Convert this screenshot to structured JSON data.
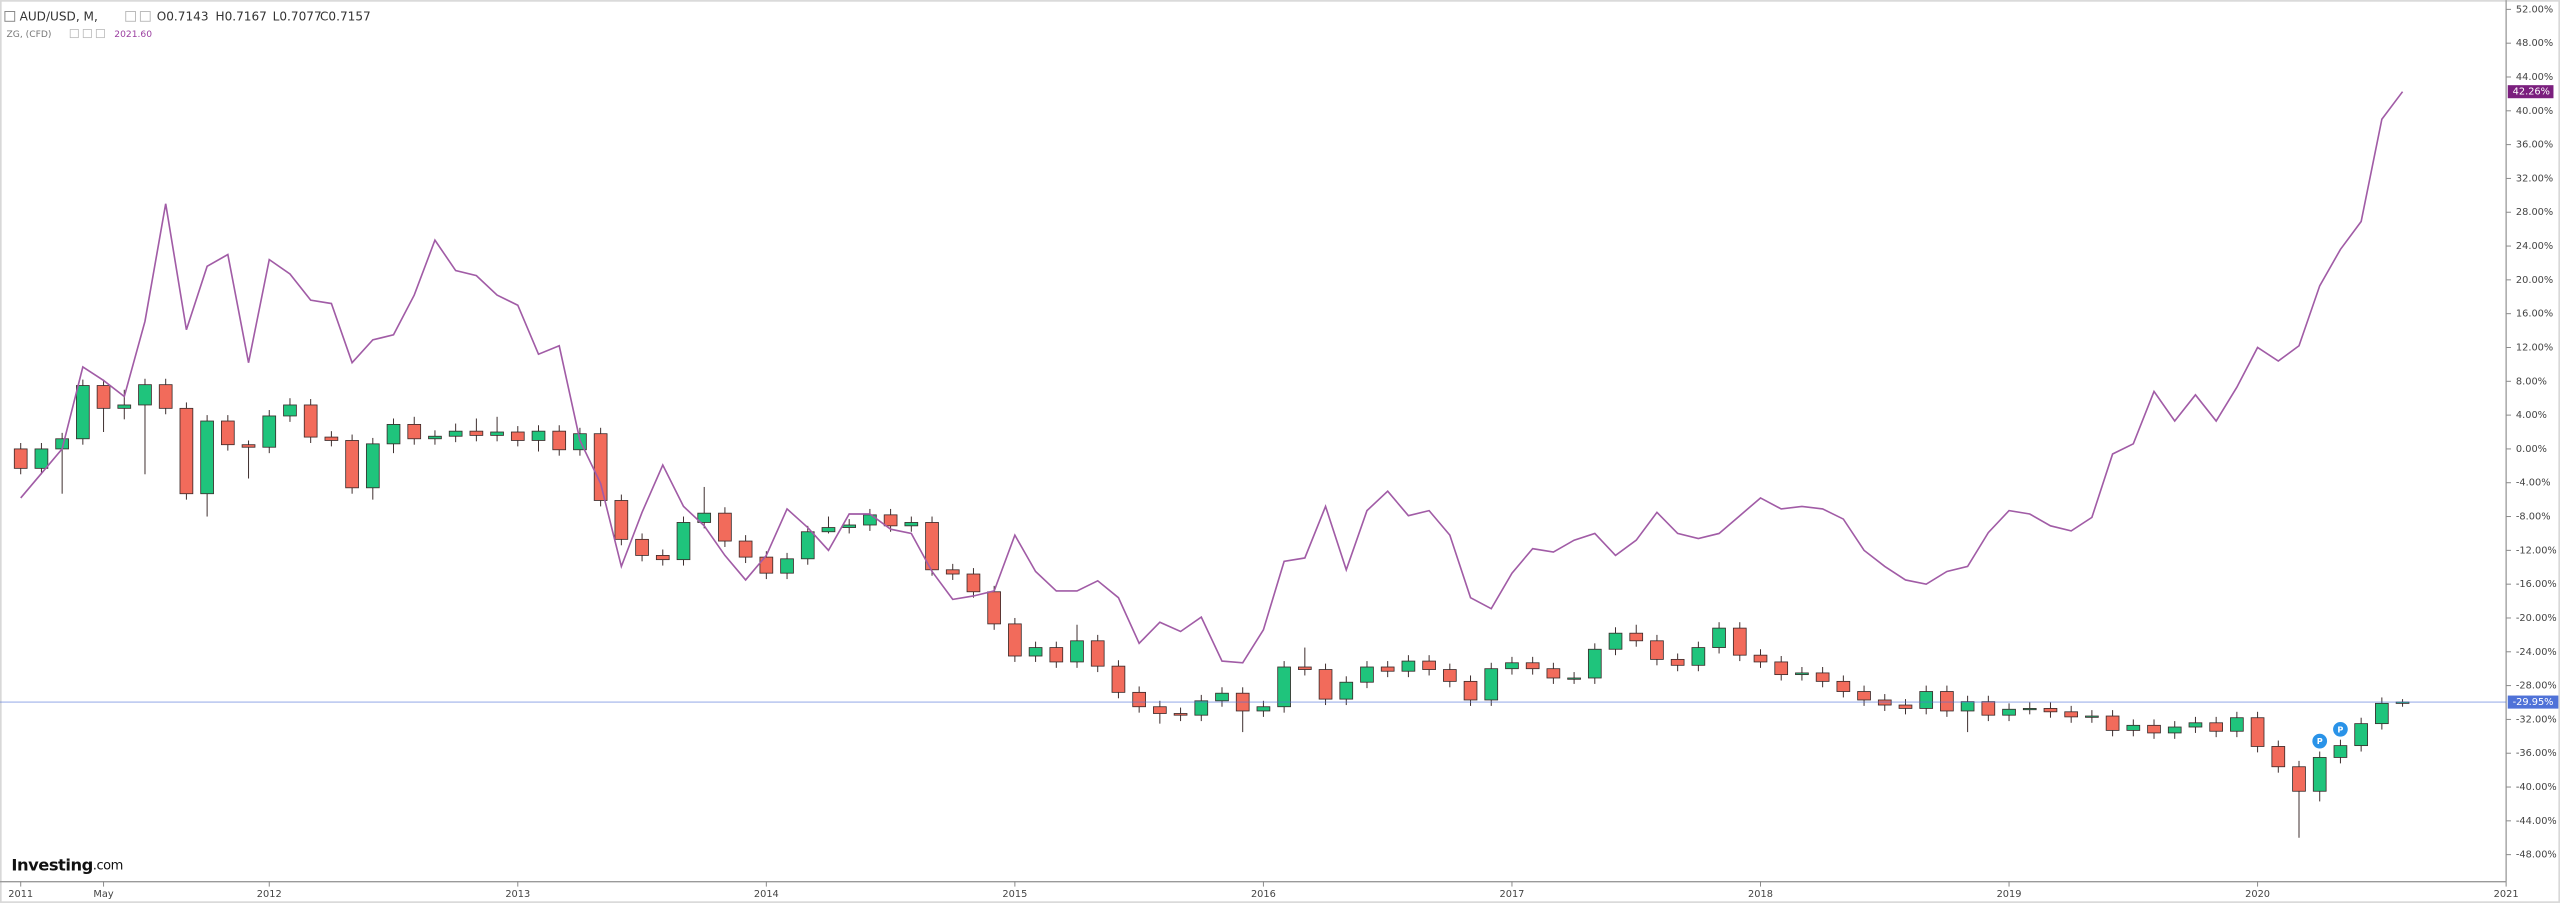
{
  "chart_data": {
    "type": "candlestick",
    "title": "AUD/USD, M,",
    "ohlc_labels": [
      "O0.7143",
      "H0.7167",
      "L0.7077",
      "C0.7157"
    ],
    "indicator": {
      "name": "ZG, (CFD)",
      "value": "2021.60"
    },
    "watermark": [
      "Investing",
      ".com"
    ],
    "x": [
      "2011-01",
      "2011-02",
      "2011-03",
      "2011-04",
      "2011-05",
      "2011-06",
      "2011-07",
      "2011-08",
      "2011-09",
      "2011-10",
      "2011-11",
      "2011-12",
      "2012-01",
      "2012-02",
      "2012-03",
      "2012-04",
      "2012-05",
      "2012-06",
      "2012-07",
      "2012-08",
      "2012-09",
      "2012-10",
      "2012-11",
      "2012-12",
      "2013-01",
      "2013-02",
      "2013-03",
      "2013-04",
      "2013-05",
      "2013-06",
      "2013-07",
      "2013-08",
      "2013-09",
      "2013-10",
      "2013-11",
      "2013-12",
      "2014-01",
      "2014-02",
      "2014-03",
      "2014-04",
      "2014-05",
      "2014-06",
      "2014-07",
      "2014-08",
      "2014-09",
      "2014-10",
      "2014-11",
      "2014-12",
      "2015-01",
      "2015-02",
      "2015-03",
      "2015-04",
      "2015-05",
      "2015-06",
      "2015-07",
      "2015-08",
      "2015-09",
      "2015-10",
      "2015-11",
      "2015-12",
      "2016-01",
      "2016-02",
      "2016-03",
      "2016-04",
      "2016-05",
      "2016-06",
      "2016-07",
      "2016-08",
      "2016-09",
      "2016-10",
      "2016-11",
      "2016-12",
      "2017-01",
      "2017-02",
      "2017-03",
      "2017-04",
      "2017-05",
      "2017-06",
      "2017-07",
      "2017-08",
      "2017-09",
      "2017-10",
      "2017-11",
      "2017-12",
      "2018-01",
      "2018-02",
      "2018-03",
      "2018-04",
      "2018-05",
      "2018-06",
      "2018-07",
      "2018-08",
      "2018-09",
      "2018-10",
      "2018-11",
      "2018-12",
      "2019-01",
      "2019-02",
      "2019-03",
      "2019-04",
      "2019-05",
      "2019-06",
      "2019-07",
      "2019-08",
      "2019-09",
      "2019-10",
      "2019-11",
      "2019-12",
      "2020-01",
      "2020-02",
      "2020-03",
      "2020-04",
      "2020-05",
      "2020-06",
      "2020-07",
      "2020-08"
    ],
    "series": [
      {
        "up_color": "#1fc47c",
        "down_color": "#f26b5b",
        "border_color": "#3a2a2a",
        "last_label": "-29.95%",
        "label_color": "#4f72d8",
        "open": [
          0,
          -2.3,
          0,
          1.2,
          7.5,
          4.8,
          5.2,
          7.6,
          4.8,
          -5.3,
          3.3,
          0.5,
          0.2,
          3.9,
          5.2,
          1.4,
          1.0,
          -4.6,
          0.6,
          2.9,
          1.2,
          1.5,
          2.1,
          1.6,
          2.0,
          1.0,
          2.1,
          -0.1,
          1.8,
          -6.1,
          -10.7,
          -12.6,
          -13.1,
          -8.7,
          -7.6,
          -10.9,
          -12.8,
          -14.7,
          -13.0,
          -9.8,
          -9.3,
          -9.0,
          -7.8,
          -9.1,
          -8.7,
          -14.3,
          -14.8,
          -16.9,
          -20.7,
          -24.5,
          -23.5,
          -25.2,
          -22.7,
          -25.7,
          -28.8,
          -30.5,
          -31.3,
          -31.5,
          -29.8,
          -28.9,
          -31.0,
          -30.5,
          -25.8,
          -26.1,
          -29.6,
          -27.6,
          -25.8,
          -26.3,
          -25.1,
          -26.1,
          -27.5,
          -29.7,
          -26.0,
          -25.3,
          -26.0,
          -27.1,
          -27.1,
          -23.7,
          -21.8,
          -22.7,
          -24.9,
          -25.6,
          -23.5,
          -21.2,
          -24.4,
          -25.2,
          -26.7,
          -26.5,
          -27.5,
          -28.7,
          -29.7,
          -30.3,
          -30.7,
          -28.7,
          -31.0,
          -29.9,
          -31.5,
          -30.8,
          -30.7,
          -31.1,
          -31.7,
          -31.6,
          -33.3,
          -32.7,
          -33.6,
          -32.9,
          -32.4,
          -33.4,
          -31.8,
          -35.2,
          -37.6,
          -40.5,
          -36.5,
          -35.1,
          -32.5,
          -30.1
        ],
        "high": [
          0.7,
          0.7,
          1.9,
          8.2,
          8.2,
          7.0,
          8.3,
          8.3,
          5.5,
          4.0,
          4.0,
          1.0,
          4.6,
          6.0,
          5.9,
          2.1,
          1.7,
          1.3,
          3.6,
          3.8,
          2.2,
          3.0,
          3.6,
          3.8,
          2.7,
          2.8,
          2.8,
          2.5,
          2.5,
          -5.4,
          -10.0,
          -11.9,
          -8.0,
          -4.5,
          -6.9,
          -10.2,
          -12.1,
          -12.3,
          -9.1,
          -8.0,
          -8.3,
          -7.1,
          -7.1,
          -8.0,
          -8.0,
          -13.6,
          -14.1,
          -16.2,
          -20.0,
          -22.8,
          -22.8,
          -20.8,
          -22.0,
          -25.0,
          -28.1,
          -29.8,
          -30.6,
          -29.1,
          -28.2,
          -28.2,
          -29.8,
          -25.1,
          -23.5,
          -25.4,
          -26.9,
          -25.1,
          -25.1,
          -24.4,
          -24.4,
          -25.4,
          -26.8,
          -25.3,
          -24.6,
          -24.6,
          -25.3,
          -26.4,
          -23.0,
          -21.1,
          -20.8,
          -22.0,
          -24.2,
          -22.8,
          -20.5,
          -20.5,
          -23.7,
          -24.5,
          -25.8,
          -25.8,
          -26.8,
          -28.0,
          -29.0,
          -29.6,
          -28.0,
          -28.0,
          -29.2,
          -29.2,
          -30.1,
          -30.0,
          -30.0,
          -30.4,
          -30.9,
          -30.9,
          -32.0,
          -32.0,
          -32.2,
          -31.7,
          -31.7,
          -31.1,
          -31.1,
          -34.5,
          -36.9,
          -35.8,
          -34.4,
          -31.8,
          -29.4,
          -29.6
        ],
        "low": [
          -3.0,
          -3.0,
          -5.3,
          0.5,
          2.0,
          3.5,
          -3.0,
          4.1,
          -6.0,
          -8.0,
          -0.2,
          -3.5,
          -0.5,
          3.2,
          0.7,
          0.3,
          -5.3,
          -6.0,
          -0.5,
          0.5,
          0.5,
          0.8,
          0.9,
          0.9,
          0.3,
          -0.3,
          -0.8,
          -0.8,
          -6.8,
          -11.4,
          -13.3,
          -13.8,
          -13.8,
          -9.4,
          -11.6,
          -13.5,
          -15.4,
          -15.4,
          -13.7,
          -10.0,
          -10.0,
          -9.7,
          -9.8,
          -9.8,
          -15.0,
          -15.5,
          -17.6,
          -21.4,
          -25.2,
          -25.2,
          -25.9,
          -25.9,
          -26.4,
          -29.5,
          -31.2,
          -32.5,
          -32.2,
          -32.2,
          -30.5,
          -33.5,
          -31.7,
          -31.2,
          -26.8,
          -30.3,
          -30.3,
          -28.3,
          -27.0,
          -27.0,
          -26.8,
          -28.2,
          -30.4,
          -30.4,
          -26.7,
          -26.7,
          -27.8,
          -27.8,
          -27.8,
          -24.4,
          -23.4,
          -25.6,
          -26.3,
          -26.3,
          -24.2,
          -25.1,
          -25.9,
          -27.4,
          -27.4,
          -28.2,
          -29.4,
          -30.4,
          -31.0,
          -31.4,
          -31.4,
          -31.7,
          -33.5,
          -32.2,
          -32.2,
          -31.4,
          -31.8,
          -32.4,
          -32.4,
          -34.0,
          -34.0,
          -34.3,
          -34.3,
          -33.6,
          -34.1,
          -34.1,
          -35.9,
          -38.3,
          -46.0,
          -41.7,
          -37.2,
          -35.8,
          -33.2,
          -30.5
        ],
        "close": [
          -2.3,
          0,
          1.2,
          7.5,
          4.8,
          5.2,
          7.6,
          4.8,
          -5.3,
          3.3,
          0.5,
          0.2,
          3.9,
          5.2,
          1.4,
          1.0,
          -4.6,
          0.6,
          2.9,
          1.2,
          1.5,
          2.1,
          1.6,
          2.0,
          1.0,
          2.1,
          -0.1,
          1.8,
          -6.1,
          -10.7,
          -12.6,
          -13.1,
          -8.7,
          -7.6,
          -10.9,
          -12.8,
          -14.7,
          -13.0,
          -9.8,
          -9.3,
          -9.0,
          -7.8,
          -9.1,
          -8.7,
          -14.3,
          -14.8,
          -16.9,
          -20.7,
          -24.5,
          -23.5,
          -25.2,
          -22.7,
          -25.7,
          -28.8,
          -30.5,
          -31.3,
          -31.5,
          -29.8,
          -28.9,
          -31.0,
          -30.5,
          -25.8,
          -26.1,
          -29.6,
          -27.6,
          -25.8,
          -26.3,
          -25.1,
          -26.1,
          -27.5,
          -29.7,
          -26.0,
          -25.3,
          -26.0,
          -27.1,
          -27.1,
          -23.7,
          -21.8,
          -22.7,
          -24.9,
          -25.6,
          -23.5,
          -21.2,
          -24.4,
          -25.2,
          -26.7,
          -26.5,
          -27.5,
          -28.7,
          -29.7,
          -30.3,
          -30.7,
          -28.7,
          -31.0,
          -29.9,
          -31.5,
          -30.8,
          -30.7,
          -31.1,
          -31.7,
          -31.6,
          -33.3,
          -32.7,
          -33.6,
          -32.9,
          -32.4,
          -33.4,
          -31.8,
          -35.2,
          -37.6,
          -40.5,
          -36.5,
          -35.1,
          -32.5,
          -30.1,
          -29.95
        ]
      },
      {
        "type": "line",
        "name": "ZG, (CFD)",
        "color": "#a15ca6",
        "last_label": "42.26%",
        "label_color": "#7b1f7e",
        "values": [
          -5.8,
          -2.9,
          0.0,
          9.7,
          8.1,
          6.2,
          15.1,
          29.0,
          14.1,
          21.6,
          23.0,
          10.2,
          22.4,
          20.7,
          17.6,
          17.2,
          10.2,
          12.9,
          13.5,
          18.2,
          24.7,
          21.1,
          20.5,
          18.2,
          17.0,
          11.2,
          12.2,
          1.0,
          -4.1,
          -13.9,
          -7.5,
          -1.9,
          -6.8,
          -9.1,
          -12.6,
          -15.5,
          -12.6,
          -7.1,
          -9.3,
          -12.0,
          -7.7,
          -7.7,
          -9.5,
          -10.0,
          -14.5,
          -17.8,
          -17.4,
          -16.8,
          -10.2,
          -14.5,
          -16.8,
          -16.8,
          -15.6,
          -17.6,
          -23.0,
          -20.5,
          -21.6,
          -19.9,
          -25.1,
          -25.3,
          -21.4,
          -13.3,
          -12.9,
          -6.8,
          -14.3,
          -7.3,
          -5.0,
          -7.9,
          -7.3,
          -10.2,
          -17.6,
          -18.9,
          -14.7,
          -11.8,
          -12.2,
          -10.8,
          -10.0,
          -12.6,
          -10.8,
          -7.5,
          -10.0,
          -10.6,
          -10.0,
          -7.9,
          -5.8,
          -7.1,
          -6.8,
          -7.1,
          -8.3,
          -12.0,
          -13.9,
          -15.5,
          -16.0,
          -14.5,
          -13.9,
          -9.9,
          -7.3,
          -7.7,
          -9.1,
          -9.7,
          -8.1,
          -0.6,
          0.6,
          6.8,
          3.3,
          6.4,
          3.3,
          7.3,
          12.0,
          10.4,
          12.2,
          19.3,
          23.6,
          26.9,
          39.0,
          42.26
        ]
      }
    ],
    "events": [
      {
        "x": "2020-04",
        "label": "P"
      },
      {
        "x": "2020-05",
        "label": "P"
      }
    ],
    "event_color": "#2a93e8",
    "xlim": [
      "2010-12",
      "2021-01"
    ],
    "xticks": [
      {
        "value": "2011-01",
        "label": "2011"
      },
      {
        "value": "2011-05",
        "label": "May"
      },
      {
        "value": "2012-01",
        "label": "2012"
      },
      {
        "value": "2013-01",
        "label": "2013"
      },
      {
        "value": "2014-01",
        "label": "2014"
      },
      {
        "value": "2015-01",
        "label": "2015"
      },
      {
        "value": "2016-01",
        "label": "2016"
      },
      {
        "value": "2017-01",
        "label": "2017"
      },
      {
        "value": "2018-01",
        "label": "2018"
      },
      {
        "value": "2019-01",
        "label": "2019"
      },
      {
        "value": "2020-01",
        "label": "2020"
      },
      {
        "value": "2021-01",
        "label": "2021"
      }
    ],
    "ylim": [
      -51.2,
      53.1
    ],
    "yticks": [
      {
        "value": 52,
        "label": "52.00%"
      },
      {
        "value": 48,
        "label": "48.00%"
      },
      {
        "value": 44,
        "label": "44.00%"
      },
      {
        "value": 40,
        "label": "40.00%"
      },
      {
        "value": 36,
        "label": "36.00%"
      },
      {
        "value": 32,
        "label": "32.00%"
      },
      {
        "value": 28,
        "label": "28.00%"
      },
      {
        "value": 24,
        "label": "24.00%"
      },
      {
        "value": 20,
        "label": "20.00%"
      },
      {
        "value": 16,
        "label": "16.00%"
      },
      {
        "value": 12,
        "label": "12.00%"
      },
      {
        "value": 8,
        "label": "8.00%"
      },
      {
        "value": 4,
        "label": "4.00%"
      },
      {
        "value": 0,
        "label": "0.00%"
      },
      {
        "value": -4,
        "label": "-4.00%"
      },
      {
        "value": -8,
        "label": "-8.00%"
      },
      {
        "value": -12,
        "label": "-12.00%"
      },
      {
        "value": -16,
        "label": "-16.00%"
      },
      {
        "value": -20,
        "label": "-20.00%"
      },
      {
        "value": -24,
        "label": "-24.00%"
      },
      {
        "value": -28,
        "label": "-28.00%"
      },
      {
        "value": -32,
        "label": "-32.00%"
      },
      {
        "value": -36,
        "label": "-36.00%"
      },
      {
        "value": -40,
        "label": "-40.00%"
      },
      {
        "value": -44,
        "label": "-44.00%"
      },
      {
        "value": -48,
        "label": "-48.00%"
      }
    ]
  }
}
